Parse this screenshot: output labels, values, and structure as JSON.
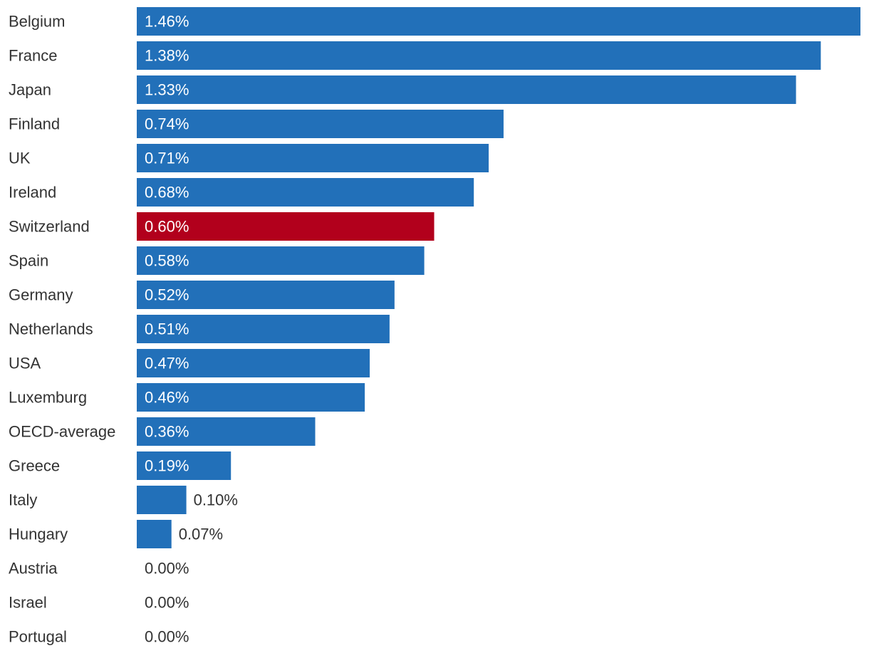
{
  "chart_data": {
    "type": "bar",
    "orientation": "horizontal",
    "title": "",
    "xlabel": "",
    "ylabel": "",
    "grid": false,
    "xlim": [
      0,
      1.46
    ],
    "value_suffix": "%",
    "categories": [
      "Belgium",
      "France",
      "Japan",
      "Finland",
      "UK",
      "Ireland",
      "Switzerland",
      "Spain",
      "Germany",
      "Netherlands",
      "USA",
      "Luxemburg",
      "OECD-average",
      "Greece",
      "Italy",
      "Hungary",
      "Austria",
      "Israel",
      "Portugal"
    ],
    "values": [
      1.46,
      1.38,
      1.33,
      0.74,
      0.71,
      0.68,
      0.6,
      0.58,
      0.52,
      0.51,
      0.47,
      0.46,
      0.36,
      0.19,
      0.1,
      0.07,
      0.0,
      0.0,
      0.0
    ],
    "value_labels": [
      "1.46%",
      "1.38%",
      "1.33%",
      "0.74%",
      "0.71%",
      "0.68%",
      "0.60%",
      "0.58%",
      "0.52%",
      "0.51%",
      "0.47%",
      "0.46%",
      "0.36%",
      "0.19%",
      "0.10%",
      "0.07%",
      "0.00%",
      "0.00%",
      "0.00%"
    ],
    "highlight": "Switzerland",
    "colors": {
      "default": "#2270b9",
      "highlight": "#b2001c",
      "label_inside": "#ffffff",
      "label_outside": "#333333",
      "category_text": "#333333"
    }
  }
}
